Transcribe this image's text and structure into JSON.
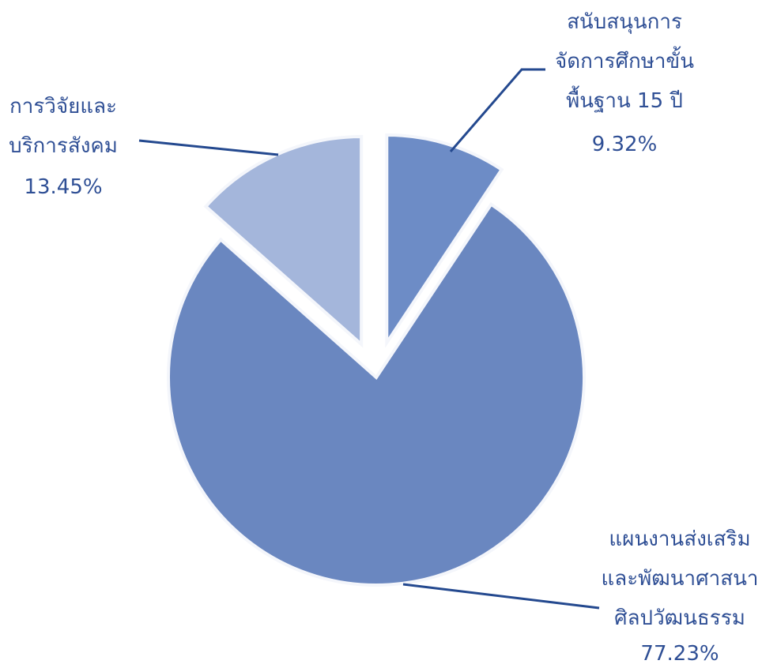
{
  "chart_data": {
    "type": "pie",
    "categories": [
      "สนับสนุนการ\nจัดการศึกษาขั้น\nพื้นฐาน 15 ปี",
      "แผนงานส่งเสริม\nและพัฒนาศาสนา\nศิลปวัฒนธรรม",
      "การวิจัยและ\nบริการสังคม"
    ],
    "values": [
      9.32,
      77.23,
      13.45
    ],
    "value_labels": [
      "9.32%",
      "77.23%",
      "13.45%"
    ],
    "colors": [
      "#6d8cc6",
      "#6a87c0",
      "#a4b6db"
    ],
    "exploded": [
      true,
      false,
      true
    ]
  }
}
